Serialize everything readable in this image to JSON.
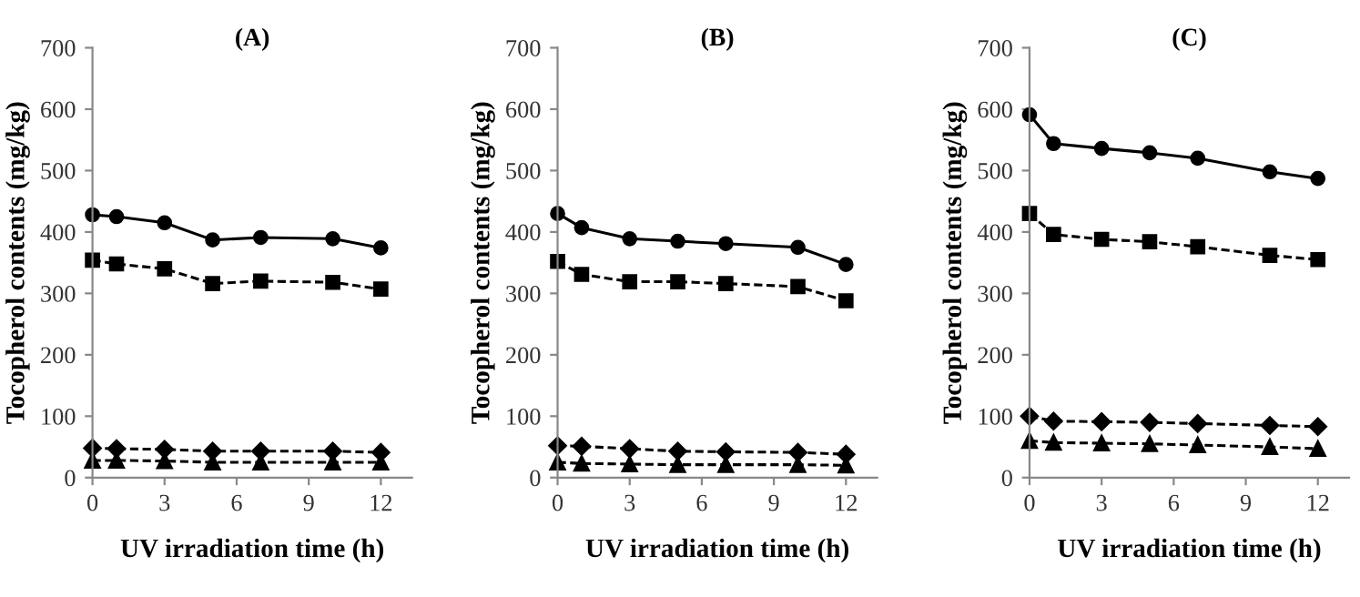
{
  "chart_data": [
    {
      "type": "line",
      "title": "(A)",
      "xlabel": "UV irradiation time (h)",
      "ylabel": "Tocopherol contents (mg/kg)",
      "x": [
        0,
        1,
        3,
        5,
        7,
        10,
        12
      ],
      "xlim": [
        0,
        13.3
      ],
      "xticks": [
        0,
        3,
        6,
        9,
        12
      ],
      "ylim": [
        0,
        700
      ],
      "yticks": [
        0,
        100,
        200,
        300,
        400,
        500,
        600,
        700
      ],
      "grid": false,
      "legend": false,
      "series": [
        {
          "color": "#000000",
          "marker": "circle",
          "line_style": "solid",
          "values": [
            428,
            425,
            415,
            387,
            391,
            389,
            374
          ]
        },
        {
          "color": "#000000",
          "marker": "square",
          "line_style": "dashed",
          "values": [
            354,
            348,
            340,
            316,
            320,
            318,
            307
          ]
        },
        {
          "color": "#000000",
          "marker": "diamond",
          "line_style": "dashed",
          "values": [
            48,
            47,
            46,
            43,
            43,
            43,
            41
          ]
        },
        {
          "color": "#000000",
          "marker": "triangle",
          "line_style": "dashed",
          "values": [
            28,
            28,
            27,
            25,
            25,
            25,
            25
          ]
        }
      ]
    },
    {
      "type": "line",
      "title": "(B)",
      "xlabel": "UV irradiation time (h)",
      "ylabel": "Tocopherol contents (mg/kg)",
      "x": [
        0,
        1,
        3,
        5,
        7,
        10,
        12
      ],
      "xlim": [
        0,
        13.3
      ],
      "xticks": [
        0,
        3,
        6,
        9,
        12
      ],
      "ylim": [
        0,
        700
      ],
      "yticks": [
        0,
        100,
        200,
        300,
        400,
        500,
        600,
        700
      ],
      "grid": false,
      "legend": false,
      "series": [
        {
          "color": "#000000",
          "marker": "circle",
          "line_style": "solid",
          "values": [
            430,
            407,
            389,
            385,
            381,
            375,
            347
          ]
        },
        {
          "color": "#000000",
          "marker": "square",
          "line_style": "dashed",
          "values": [
            352,
            331,
            319,
            319,
            316,
            311,
            288
          ]
        },
        {
          "color": "#000000",
          "marker": "diamond",
          "line_style": "dashed",
          "values": [
            52,
            51,
            47,
            43,
            42,
            41,
            38
          ]
        },
        {
          "color": "#000000",
          "marker": "triangle",
          "line_style": "dashed",
          "values": [
            25,
            23,
            22,
            21,
            21,
            21,
            20
          ]
        }
      ]
    },
    {
      "type": "line",
      "title": "(C)",
      "xlabel": "UV irradiation time (h)",
      "ylabel": "Tocopherol contents (mg/kg)",
      "x": [
        0,
        1,
        3,
        5,
        7,
        10,
        12
      ],
      "xlim": [
        0,
        13.3
      ],
      "xticks": [
        0,
        3,
        6,
        9,
        12
      ],
      "ylim": [
        0,
        700
      ],
      "yticks": [
        0,
        100,
        200,
        300,
        400,
        500,
        600,
        700
      ],
      "grid": false,
      "legend": false,
      "series": [
        {
          "color": "#000000",
          "marker": "circle",
          "line_style": "solid",
          "values": [
            591,
            544,
            536,
            529,
            520,
            498,
            487
          ]
        },
        {
          "color": "#000000",
          "marker": "square",
          "line_style": "dashed",
          "values": [
            430,
            396,
            388,
            384,
            376,
            362,
            355
          ]
        },
        {
          "color": "#000000",
          "marker": "diamond",
          "line_style": "dashed",
          "values": [
            100,
            92,
            91,
            90,
            88,
            85,
            83
          ]
        },
        {
          "color": "#000000",
          "marker": "triangle",
          "line_style": "dashed",
          "values": [
            60,
            57,
            56,
            55,
            53,
            50,
            47
          ]
        }
      ]
    }
  ]
}
